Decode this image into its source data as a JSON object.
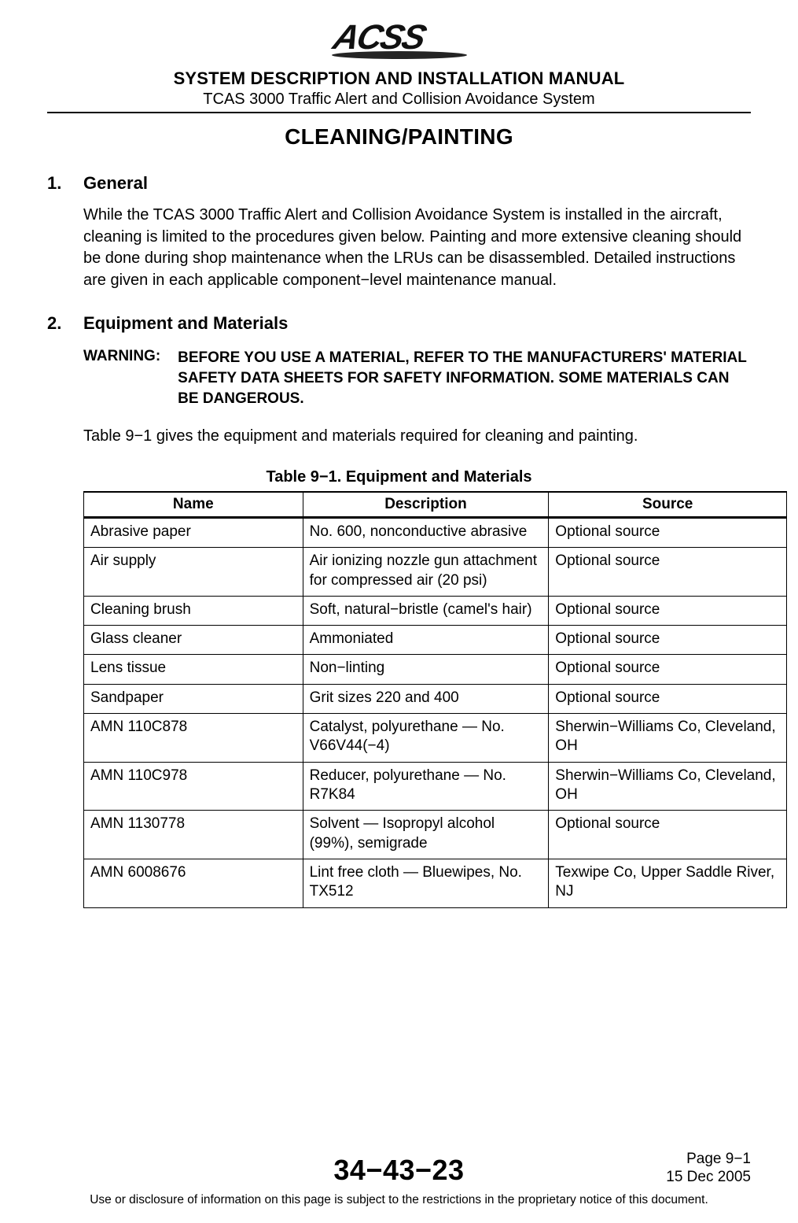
{
  "header": {
    "logo_text": "ACSS",
    "doc_title": "SYSTEM DESCRIPTION AND INSTALLATION MANUAL",
    "doc_subtitle": "TCAS 3000 Traffic Alert and Collision Avoidance System"
  },
  "section_title": "CLEANING/PAINTING",
  "sections": [
    {
      "num": "1.",
      "heading": "General",
      "para": "While the TCAS 3000 Traffic Alert and Collision Avoidance System is installed in the aircraft, cleaning is limited to the procedures given below.  Painting and more extensive cleaning should be done during shop maintenance when the LRUs can be disassembled.  Detailed instructions are given in each applicable component−level maintenance manual."
    },
    {
      "num": "2.",
      "heading": "Equipment and Materials",
      "warning_label": "WARNING:",
      "warning_text": "BEFORE YOU USE A MATERIAL, REFER TO THE MANUFACTURERS' MATERIAL SAFETY DATA SHEETS FOR SAFETY INFORMATION. SOME MATERIALS CAN BE DANGEROUS.",
      "para": "Table 9−1 gives the equipment and materials required for cleaning and painting."
    }
  ],
  "table": {
    "caption": "Table 9−1.  Equipment and Materials",
    "columns": [
      "Name",
      "Description",
      "Source"
    ],
    "rows": [
      [
        "Abrasive paper",
        "No. 600, nonconductive abrasive",
        "Optional source"
      ],
      [
        "Air supply",
        "Air ionizing nozzle gun attachment for compressed air (20 psi)",
        "Optional source"
      ],
      [
        "Cleaning brush",
        "Soft, natural−bristle (camel's hair)",
        "Optional source"
      ],
      [
        "Glass cleaner",
        "Ammoniated",
        "Optional source"
      ],
      [
        "Lens tissue",
        "Non−linting",
        "Optional source"
      ],
      [
        "Sandpaper",
        "Grit sizes 220 and 400",
        "Optional source"
      ],
      [
        "AMN 110C878",
        "Catalyst, polyurethane — No. V66V44(−4)",
        "Sherwin−Williams Co, Cleveland, OH"
      ],
      [
        "AMN 110C978",
        "Reducer, polyurethane — No. R7K84",
        "Sherwin−Williams Co, Cleveland, OH"
      ],
      [
        "AMN 1130778",
        "Solvent — Isopropyl alcohol (99%), semigrade",
        "Optional source"
      ],
      [
        "AMN 6008676",
        "Lint free cloth — Bluewipes, No. TX512",
        "Texwipe Co, Upper Saddle River, NJ"
      ]
    ]
  },
  "footer": {
    "code": "34−43−23",
    "page": "Page 9−1",
    "date": "15 Dec 2005",
    "notice": "Use or disclosure of information on this page is subject to the restrictions in the proprietary notice of this document."
  },
  "colors": {
    "text": "#000000",
    "background": "#ffffff",
    "rule": "#000000"
  }
}
